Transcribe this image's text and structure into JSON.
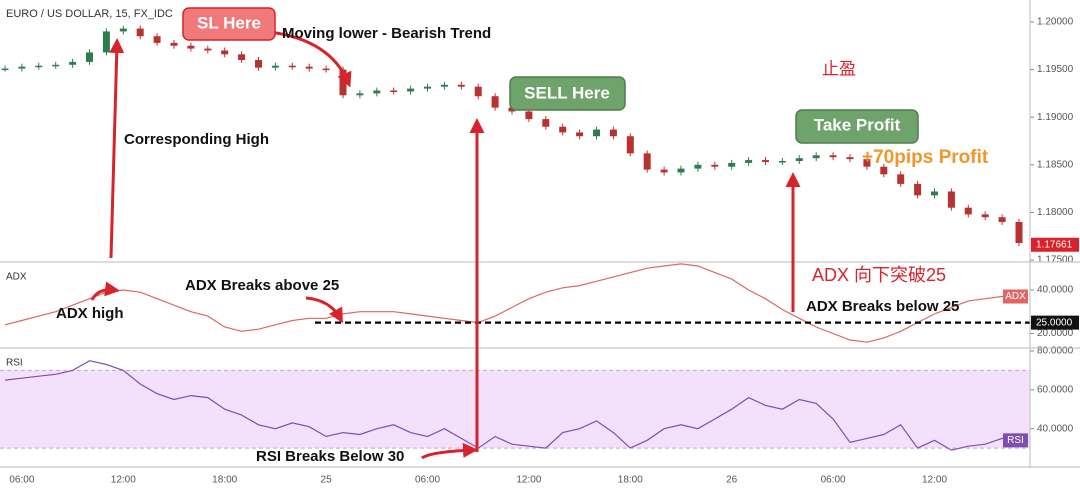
{
  "chart_data": [
    {
      "type": "candlestick",
      "title": "EURO / US DOLLAR, 15, FX_IDC",
      "values": [
        1.1951,
        1.1953,
        1.1954,
        1.1955,
        1.1958,
        1.1968,
        1.199,
        1.1993,
        1.1985,
        1.1978,
        1.1975,
        1.1972,
        1.197,
        1.1966,
        1.196,
        1.1952,
        1.1954,
        1.1953,
        1.1951,
        1.195,
        1.1923,
        1.1925,
        1.1928,
        1.1927,
        1.193,
        1.1932,
        1.1934,
        1.1932,
        1.1922,
        1.191,
        1.1906,
        1.1898,
        1.189,
        1.1884,
        1.188,
        1.1887,
        1.188,
        1.1862,
        1.1845,
        1.1842,
        1.1846,
        1.185,
        1.1848,
        1.1852,
        1.1855,
        1.1853,
        1.1854,
        1.1857,
        1.186,
        1.1858,
        1.1856,
        1.1848,
        1.184,
        1.183,
        1.1818,
        1.1822,
        1.1805,
        1.1798,
        1.1795,
        1.179,
        1.1768
      ],
      "up_color": "#2e7d4f",
      "down_color": "#b83232",
      "ylim": [
        1.1748,
        1.2023
      ],
      "yticks": [
        {
          "value": 1.2,
          "label": "1.20000"
        },
        {
          "value": 1.195,
          "label": "1.19500"
        },
        {
          "value": 1.19,
          "label": "1.19000"
        },
        {
          "value": 1.185,
          "label": "1.18500"
        },
        {
          "value": 1.18,
          "label": "1.18000"
        },
        {
          "value": 1.175,
          "label": "1.17500"
        }
      ],
      "last": {
        "value": 1.17661,
        "label": "1.17661"
      },
      "annotations": [
        "SL Here",
        "Moving lower - Bearish Trend",
        "止盈",
        "SELL Here",
        "Take Profit",
        "+70pips Profit",
        "Corresponding High"
      ]
    },
    {
      "type": "line",
      "title": "ADX",
      "tag": "ADX",
      "color": "#e06666",
      "values": [
        24,
        26,
        28,
        30,
        33,
        36,
        39,
        40,
        39,
        36,
        33,
        30,
        28,
        23,
        21,
        22,
        24,
        26,
        27,
        27,
        29,
        30,
        30,
        30,
        29,
        28,
        27,
        26,
        25,
        28,
        32,
        36,
        39,
        41,
        42,
        44,
        46,
        48,
        50,
        51,
        52,
        51,
        48,
        45,
        40,
        36,
        31,
        27,
        23,
        20,
        17,
        16,
        18,
        21,
        25,
        29,
        32,
        35,
        36,
        37,
        37
      ],
      "ylim": [
        13.8,
        52.4
      ],
      "yticks": [
        {
          "value": 40,
          "label": "40.0000"
        },
        {
          "value": 20,
          "label": "20.0000"
        }
      ],
      "threshold": {
        "value": 25,
        "label": "25.0000"
      },
      "annotations": [
        "ADX high",
        "ADX Breaks above 25",
        "ADX 向下突破25",
        "ADX Breaks below 25"
      ]
    },
    {
      "type": "line",
      "title": "RSI",
      "tag": "RSI",
      "color": "#7e4fb0",
      "values": [
        65,
        66,
        67,
        68,
        70,
        75,
        73,
        70,
        63,
        58,
        55,
        57,
        56,
        50,
        47,
        42,
        40,
        43,
        41,
        36,
        38,
        37,
        40,
        42,
        38,
        36,
        40,
        35,
        30,
        36,
        32,
        31,
        30,
        38,
        40,
        44,
        38,
        30,
        34,
        40,
        42,
        40,
        45,
        50,
        56,
        52,
        50,
        55,
        53,
        45,
        33,
        35,
        37,
        42,
        30,
        34,
        29,
        31,
        32,
        35,
        34
      ],
      "band": [
        30,
        70
      ],
      "band_color": "#f3e1fb",
      "ylim": [
        20.8,
        81
      ],
      "yticks": [
        {
          "value": 80,
          "label": "80.0000"
        },
        {
          "value": 60,
          "label": "60.0000"
        },
        {
          "value": 40,
          "label": "40.0000"
        }
      ],
      "categories": [
        null,
        "06:00",
        null,
        null,
        null,
        null,
        null,
        "12:00",
        null,
        null,
        null,
        null,
        null,
        "18:00",
        null,
        null,
        null,
        null,
        null,
        "25",
        null,
        null,
        null,
        null,
        null,
        "06:00",
        null,
        null,
        null,
        null,
        null,
        "12:00",
        null,
        null,
        null,
        null,
        null,
        "18:00",
        null,
        null,
        null,
        null,
        null,
        "26",
        null,
        null,
        null,
        null,
        null,
        "06:00",
        null,
        null,
        null,
        null,
        null,
        "12:00",
        null,
        null,
        null,
        null,
        null
      ],
      "annotations": [
        "RSI Breaks Below 30"
      ]
    }
  ]
}
